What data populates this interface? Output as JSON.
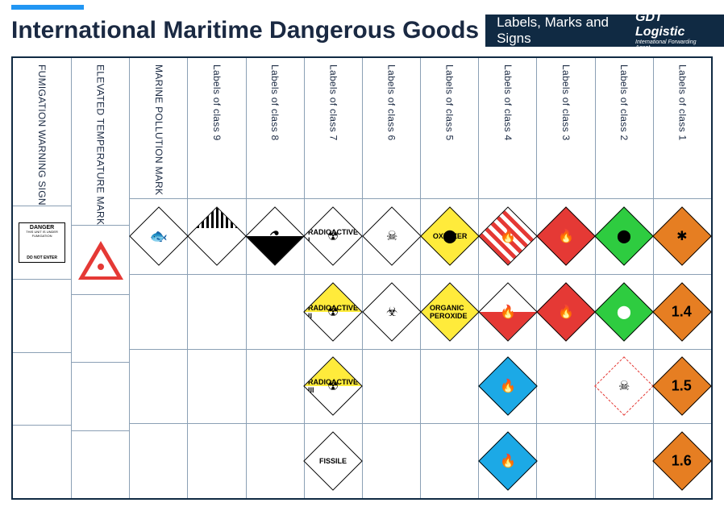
{
  "accent_color": "#2196f3",
  "header": {
    "title": "International Maritime Dangerous Goods",
    "banner_text": "Labels, Marks and Signs",
    "banner_bg": "#102a43",
    "logo_main": "GDT Logistic",
    "logo_sub": "International Forwarding Agent"
  },
  "columns": [
    {
      "label": "Labels of class 1",
      "labels": [
        {
          "type": "diamond",
          "bg": "#e67e22",
          "text": "",
          "icon": "✱"
        },
        {
          "type": "diamond",
          "bg": "#e67e22",
          "text": "1.4"
        },
        {
          "type": "diamond",
          "bg": "#e67e22",
          "text": "1.5"
        },
        {
          "type": "diamond",
          "bg": "#e67e22",
          "text": "1.6"
        }
      ]
    },
    {
      "label": "Labels of class 2",
      "labels": [
        {
          "type": "diamond",
          "bg": "#2ecc40",
          "icon": "⬤",
          "icon_color": "#000"
        },
        {
          "type": "diamond",
          "bg": "#2ecc40",
          "icon": "⬤",
          "icon_color": "#fff"
        },
        {
          "type": "diamond-dashed",
          "icon": "☠"
        },
        null
      ]
    },
    {
      "label": "Labels of class 3",
      "labels": [
        {
          "type": "diamond",
          "bg": "#e53935",
          "icon": "🔥",
          "icon_color": "#fff"
        },
        {
          "type": "diamond",
          "bg": "#e53935",
          "icon": "🔥",
          "icon_color": "#fff"
        },
        null,
        null
      ]
    },
    {
      "label": "Labels of class 4",
      "labels": [
        {
          "type": "diamond-stripes",
          "icon": "🔥"
        },
        {
          "type": "diamond-half",
          "top": "#fff",
          "bot": "#e53935",
          "icon": "🔥"
        },
        {
          "type": "diamond",
          "bg": "#1ca9e6",
          "icon": "🔥",
          "icon_color": "#fff"
        },
        {
          "type": "diamond",
          "bg": "#1ca9e6",
          "icon": "🔥",
          "icon_color": "#fff"
        }
      ]
    },
    {
      "label": "Labels of class 5",
      "labels": [
        {
          "type": "diamond",
          "bg": "#ffeb3b",
          "icon": "⬤",
          "text_small": "OXIDIZER"
        },
        {
          "type": "diamond-half",
          "top": "#ffeb3b",
          "bot": "#ffeb3b",
          "bg": "#ffeb3b",
          "text_small": "ORGANIC PEROXIDE"
        },
        null,
        null
      ]
    },
    {
      "label": "Labels of class 6",
      "labels": [
        {
          "type": "diamond",
          "bg": "#fff",
          "icon": "☠"
        },
        {
          "type": "diamond",
          "bg": "#fff",
          "icon": "☣"
        },
        null,
        null
      ]
    },
    {
      "label": "Labels of class 7",
      "labels": [
        {
          "type": "diamond-half",
          "top": "#fff",
          "bot": "#fff",
          "icon": "☢",
          "text_small": "RADIOACTIVE I"
        },
        {
          "type": "diamond-half",
          "top": "#ffeb3b",
          "bot": "#fff",
          "icon": "☢",
          "text_small": "RADIOACTIVE II"
        },
        {
          "type": "diamond-half",
          "top": "#ffeb3b",
          "bot": "#fff",
          "icon": "☢",
          "text_small": "RADIOACTIVE III"
        },
        {
          "type": "diamond",
          "bg": "#fff",
          "text_small": "FISSILE"
        }
      ]
    },
    {
      "label": "Labels of class 8",
      "labels": [
        {
          "type": "diamond-half",
          "top": "#fff",
          "bot": "#000",
          "icon": "⚗"
        },
        null,
        null,
        null
      ]
    },
    {
      "label": "Labels of class 9",
      "labels": [
        {
          "type": "diamond-c9"
        },
        null,
        null,
        null
      ]
    },
    {
      "label": "MARINE POLLUTION MARK",
      "labels": [
        {
          "type": "mpm",
          "icon": "🐟"
        },
        null,
        null,
        null
      ]
    },
    {
      "label": "ELEVATED TEMPERATURE MARK",
      "labels": [
        {
          "type": "triangle"
        },
        null,
        null,
        null
      ]
    },
    {
      "label": "FUMIGATION WARNING SIGN",
      "labels": [
        {
          "type": "fumigation",
          "title": "DANGER",
          "body": "THIS UNIT IS UNDER FUMIGATION",
          "footer": "DO NOT ENTER"
        },
        null,
        null,
        null
      ]
    }
  ],
  "grid": {
    "cols": 12,
    "rows": 4,
    "border_color": "#102a43",
    "line_color": "#8ba0b5"
  }
}
